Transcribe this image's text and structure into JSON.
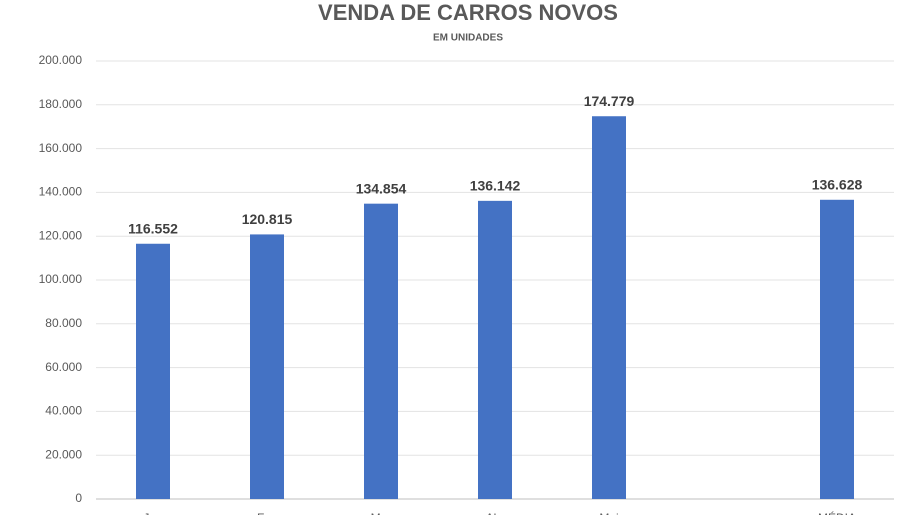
{
  "chart_data": {
    "type": "bar",
    "title": "VENDA DE CARROS NOVOS",
    "subtitle": "EM UNIDADES",
    "categories": [
      "Jan",
      "Fev",
      "Mar",
      "Abr",
      "Mai",
      null,
      "MÉDIA"
    ],
    "values": [
      116552,
      120815,
      134854,
      136142,
      174779,
      null,
      136628
    ],
    "value_labels": [
      "116.552",
      "120.815",
      "134.854",
      "136.142",
      "174.779",
      null,
      "136.628"
    ],
    "color": "#4472c4",
    "ylim": [
      0,
      200000
    ],
    "yticks": [
      0,
      {
        "value": 20000,
        "label": "20.000"
      },
      {
        "value": 40000,
        "label": "40.000"
      },
      {
        "value": 60000,
        "label": "60.000"
      },
      {
        "value": 80000,
        "label": "80.000"
      },
      {
        "value": 100000,
        "label": "100.000"
      },
      {
        "value": 120000,
        "label": "120.000"
      },
      {
        "value": 140000,
        "label": "140.000"
      },
      {
        "value": 160000,
        "label": "160.000"
      },
      {
        "value": 180000,
        "label": "180.000"
      },
      {
        "value": 200000,
        "label": "200.000"
      }
    ],
    "grid": true
  }
}
